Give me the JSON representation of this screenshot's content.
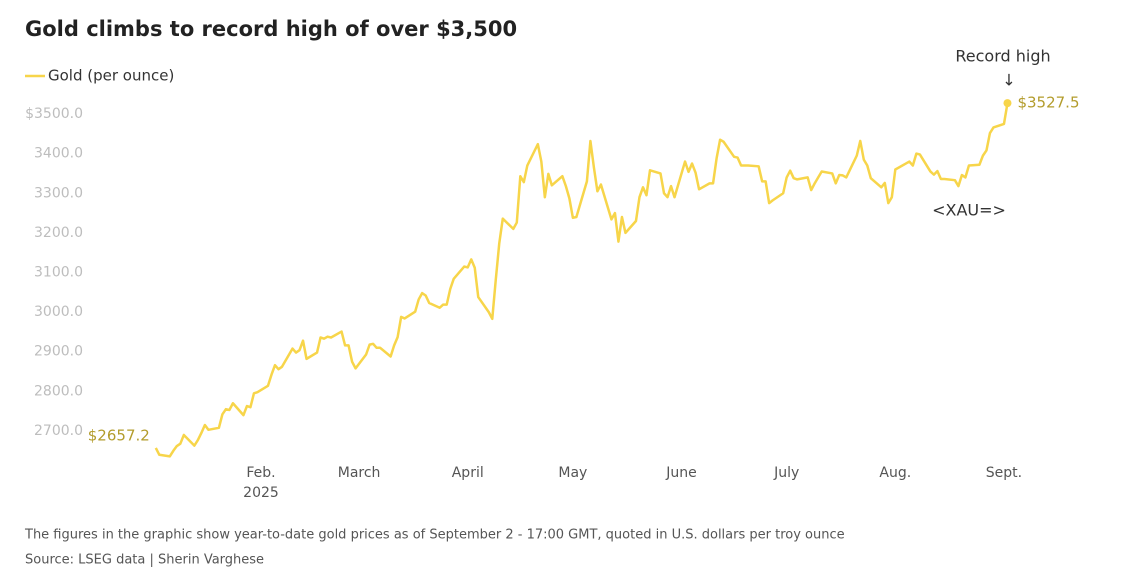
{
  "chart_data": {
    "type": "line",
    "title": "Gold climbs to record high of over $3,500",
    "footnote": "The figures in the graphic show year-to-date gold prices as of September 2 - 17:00 GMT, quoted in U.S. dollars per troy ounce",
    "source": "Source: LSEG data | Sherin Varghese",
    "annotations": [
      {
        "text": "Record high"
      },
      {
        "text": "↓"
      },
      {
        "text": "<XAU=>"
      }
    ],
    "year_label": "2025",
    "legend": "top-left",
    "grid": false,
    "xlim": [
      0,
      250
    ],
    "xticks": [
      {
        "value": 32,
        "label": "Feb."
      },
      {
        "value": 60,
        "label": "March"
      },
      {
        "value": 91,
        "label": "April"
      },
      {
        "value": 121,
        "label": "May"
      },
      {
        "value": 152,
        "label": "June"
      },
      {
        "value": 182,
        "label": "July"
      },
      {
        "value": 213,
        "label": "Aug."
      },
      {
        "value": 244,
        "label": "Sept."
      }
    ],
    "ylim": [
      2625,
      3550
    ],
    "yticks": [
      {
        "value": 2700,
        "label": "2700.0"
      },
      {
        "value": 2800,
        "label": "2800.0"
      },
      {
        "value": 2900,
        "label": "2900.0"
      },
      {
        "value": 3000,
        "label": "3000.0"
      },
      {
        "value": 3100,
        "label": "3100.0"
      },
      {
        "value": 3200,
        "label": "3200.0"
      },
      {
        "value": 3300,
        "label": "3300.0"
      },
      {
        "value": 3400,
        "label": "3400.0"
      },
      {
        "value": 3500,
        "label": "$3500.0"
      }
    ],
    "x": [
      2,
      3,
      6,
      7,
      8,
      9,
      10,
      13,
      14,
      15,
      16,
      17,
      20,
      21,
      22,
      23,
      24,
      27,
      28,
      29,
      30,
      31,
      34,
      35,
      36,
      37,
      38,
      41,
      42,
      43,
      44,
      45,
      48,
      49,
      50,
      51,
      52,
      55,
      56,
      57,
      58,
      59,
      62,
      63,
      64,
      65,
      66,
      69,
      70,
      71,
      72,
      73,
      76,
      77,
      78,
      79,
      80,
      83,
      84,
      85,
      86,
      87,
      90,
      91,
      92,
      93,
      94,
      97,
      98,
      99,
      100,
      101,
      104,
      105,
      106,
      107,
      108,
      111,
      112,
      113,
      114,
      115,
      118,
      119,
      120,
      121,
      122,
      125,
      126,
      127,
      128,
      129,
      132,
      133,
      134,
      135,
      136,
      139,
      140,
      141,
      142,
      143,
      146,
      147,
      148,
      149,
      150,
      153,
      154,
      155,
      156,
      157,
      160,
      161,
      162,
      163,
      164,
      167,
      168,
      169,
      170,
      171,
      174,
      175,
      176,
      177,
      178,
      181,
      182,
      183,
      184,
      185,
      188,
      189,
      190,
      191,
      192,
      195,
      196,
      197,
      198,
      199,
      202,
      203,
      204,
      205,
      206,
      209,
      210,
      211,
      212,
      213,
      216,
      217,
      218,
      219,
      220,
      223,
      224,
      225,
      226,
      227,
      230,
      231,
      232,
      233,
      234,
      237,
      238,
      239,
      240,
      241,
      244,
      245
    ],
    "series": [
      {
        "name": "Gold (per ounce)",
        "color": "#f7d54a",
        "label_color": "#b39c2c",
        "values": [
          2657.2,
          2640,
          2636,
          2650,
          2662,
          2668,
          2690,
          2663,
          2677,
          2695,
          2715,
          2703,
          2708,
          2742,
          2755,
          2753,
          2770,
          2740,
          2763,
          2760,
          2795,
          2798,
          2814,
          2842,
          2866,
          2856,
          2862,
          2908,
          2898,
          2904,
          2928,
          2882,
          2898,
          2936,
          2933,
          2938,
          2936,
          2951,
          2916,
          2916,
          2875,
          2858,
          2893,
          2918,
          2920,
          2910,
          2910,
          2888,
          2916,
          2937,
          2988,
          2984,
          3001,
          3032,
          3048,
          3042,
          3023,
          3011,
          3019,
          3019,
          3058,
          3084,
          3115,
          3113,
          3133,
          3112,
          3038,
          3000,
          2983,
          3082,
          3174,
          3236,
          3210,
          3226,
          3343,
          3328,
          3370,
          3424,
          3380,
          3290,
          3349,
          3320,
          3343,
          3318,
          3287,
          3238,
          3240,
          3330,
          3432,
          3365,
          3305,
          3322,
          3234,
          3250,
          3178,
          3240,
          3200,
          3230,
          3290,
          3315,
          3295,
          3358,
          3350,
          3300,
          3290,
          3318,
          3290,
          3380,
          3354,
          3375,
          3352,
          3310,
          3325,
          3325,
          3388,
          3435,
          3430,
          3392,
          3390,
          3370,
          3370,
          3370,
          3368,
          3330,
          3330,
          3275,
          3282,
          3300,
          3340,
          3357,
          3338,
          3335,
          3340,
          3308,
          3325,
          3340,
          3355,
          3350,
          3325,
          3346,
          3345,
          3340,
          3395,
          3432,
          3385,
          3370,
          3338,
          3315,
          3326,
          3275,
          3290,
          3360,
          3375,
          3380,
          3370,
          3400,
          3398,
          3355,
          3347,
          3356,
          3336,
          3336,
          3333,
          3318,
          3346,
          3340,
          3370,
          3372,
          3395,
          3408,
          3452,
          3466,
          3475,
          3527.5
        ],
        "value_labels": [
          "$2657.2",
          null,
          null,
          null,
          null,
          null,
          null,
          null,
          null,
          null,
          null,
          null,
          null,
          null,
          null,
          null,
          null,
          null,
          null,
          null,
          null,
          null,
          null,
          null,
          null,
          null,
          null,
          null,
          null,
          null,
          null,
          null,
          null,
          null,
          null,
          null,
          null,
          null,
          null,
          null,
          null,
          null,
          null,
          null,
          null,
          null,
          null,
          null,
          null,
          null,
          null,
          null,
          null,
          null,
          null,
          null,
          null,
          null,
          null,
          null,
          null,
          null,
          null,
          null,
          null,
          null,
          null,
          null,
          null,
          null,
          null,
          null,
          null,
          null,
          null,
          null,
          null,
          null,
          null,
          null,
          null,
          null,
          null,
          null,
          null,
          null,
          null,
          null,
          null,
          null,
          null,
          null,
          null,
          null,
          null,
          null,
          null,
          null,
          null,
          null,
          null,
          null,
          null,
          null,
          null,
          null,
          null,
          null,
          null,
          null,
          null,
          null,
          null,
          null,
          null,
          null,
          null,
          null,
          null,
          null,
          null,
          null,
          null,
          null,
          null,
          null,
          null,
          null,
          null,
          null,
          null,
          null,
          null,
          null,
          null,
          null,
          null,
          null,
          null,
          null,
          null,
          null,
          null,
          null,
          null,
          null,
          null,
          null,
          null,
          null,
          null,
          null,
          null,
          null,
          null,
          null,
          null,
          null,
          null,
          null,
          null,
          null,
          null,
          null,
          null,
          null,
          null,
          null,
          null,
          null,
          null,
          null,
          null,
          "$3527.5"
        ]
      }
    ]
  }
}
